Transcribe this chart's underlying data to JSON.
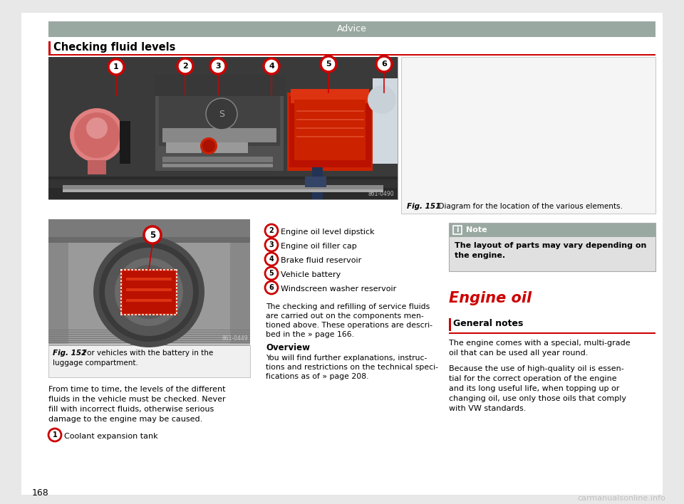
{
  "page_bg": "#e8e8e8",
  "content_bg": "#ffffff",
  "header_bar_color": "#9aA8A2",
  "header_text": "Advice",
  "header_text_color": "#ffffff",
  "section_title": "Checking fluid levels",
  "section_title_color": "#000000",
  "accent_red": "#cc0000",
  "fig151_caption_bold": "Fig. 151",
  "fig151_caption_rest": "  Diagram for the location of the various elements.",
  "fig152_caption_bold": "Fig. 152",
  "fig152_caption_rest": "  For vehicles with the battery in the\nluggage compartment.",
  "note_header_bg": "#9aA8A2",
  "note_body_bg": "#e0e0e0",
  "note_body_text_line1": "The layout of parts may vary depending on",
  "note_body_text_line2": "the engine.",
  "engine_oil_title": "Engine oil",
  "general_notes_title": "General notes",
  "numbered_items": [
    {
      "num": "2",
      "text": "Engine oil level dipstick"
    },
    {
      "num": "3",
      "text": "Engine oil filler cap"
    },
    {
      "num": "4",
      "text": "Brake fluid reservoir"
    },
    {
      "num": "5",
      "text": "Vehicle battery"
    },
    {
      "num": "6",
      "text": "Windscreen washer reservoir"
    }
  ],
  "item1_num": "1",
  "item1_text": "Coolant expansion tank",
  "body_text_left": [
    "From time to time, the levels of the different",
    "fluids in the vehicle must be checked. Never",
    "fill with incorrect fluids, otherwise serious",
    "damage to the engine may be caused."
  ],
  "para_middle": [
    "The checking and refilling of service fluids",
    "are carried out on the components men-",
    "tioned above. These operations are descri-",
    "bed in the » page 166."
  ],
  "overview_title": "Overview",
  "overview_text": [
    "You will find further explanations, instruc-",
    "tions and restrictions on the technical speci-",
    "fications as of » page 208."
  ],
  "engine_body1": [
    "The engine comes with a special, multi-grade",
    "oil that can be used all year round."
  ],
  "engine_body2": [
    "Because the use of high-quality oil is essen-",
    "tial for the correct operation of the engine",
    "and its long useful life, when topping up or",
    "changing oil, use only those oils that comply",
    "with VW standards."
  ],
  "page_number": "168",
  "watermark": "carmanualsonline.info",
  "img_credit1": "861-0490",
  "img_credit2": "861-0449"
}
